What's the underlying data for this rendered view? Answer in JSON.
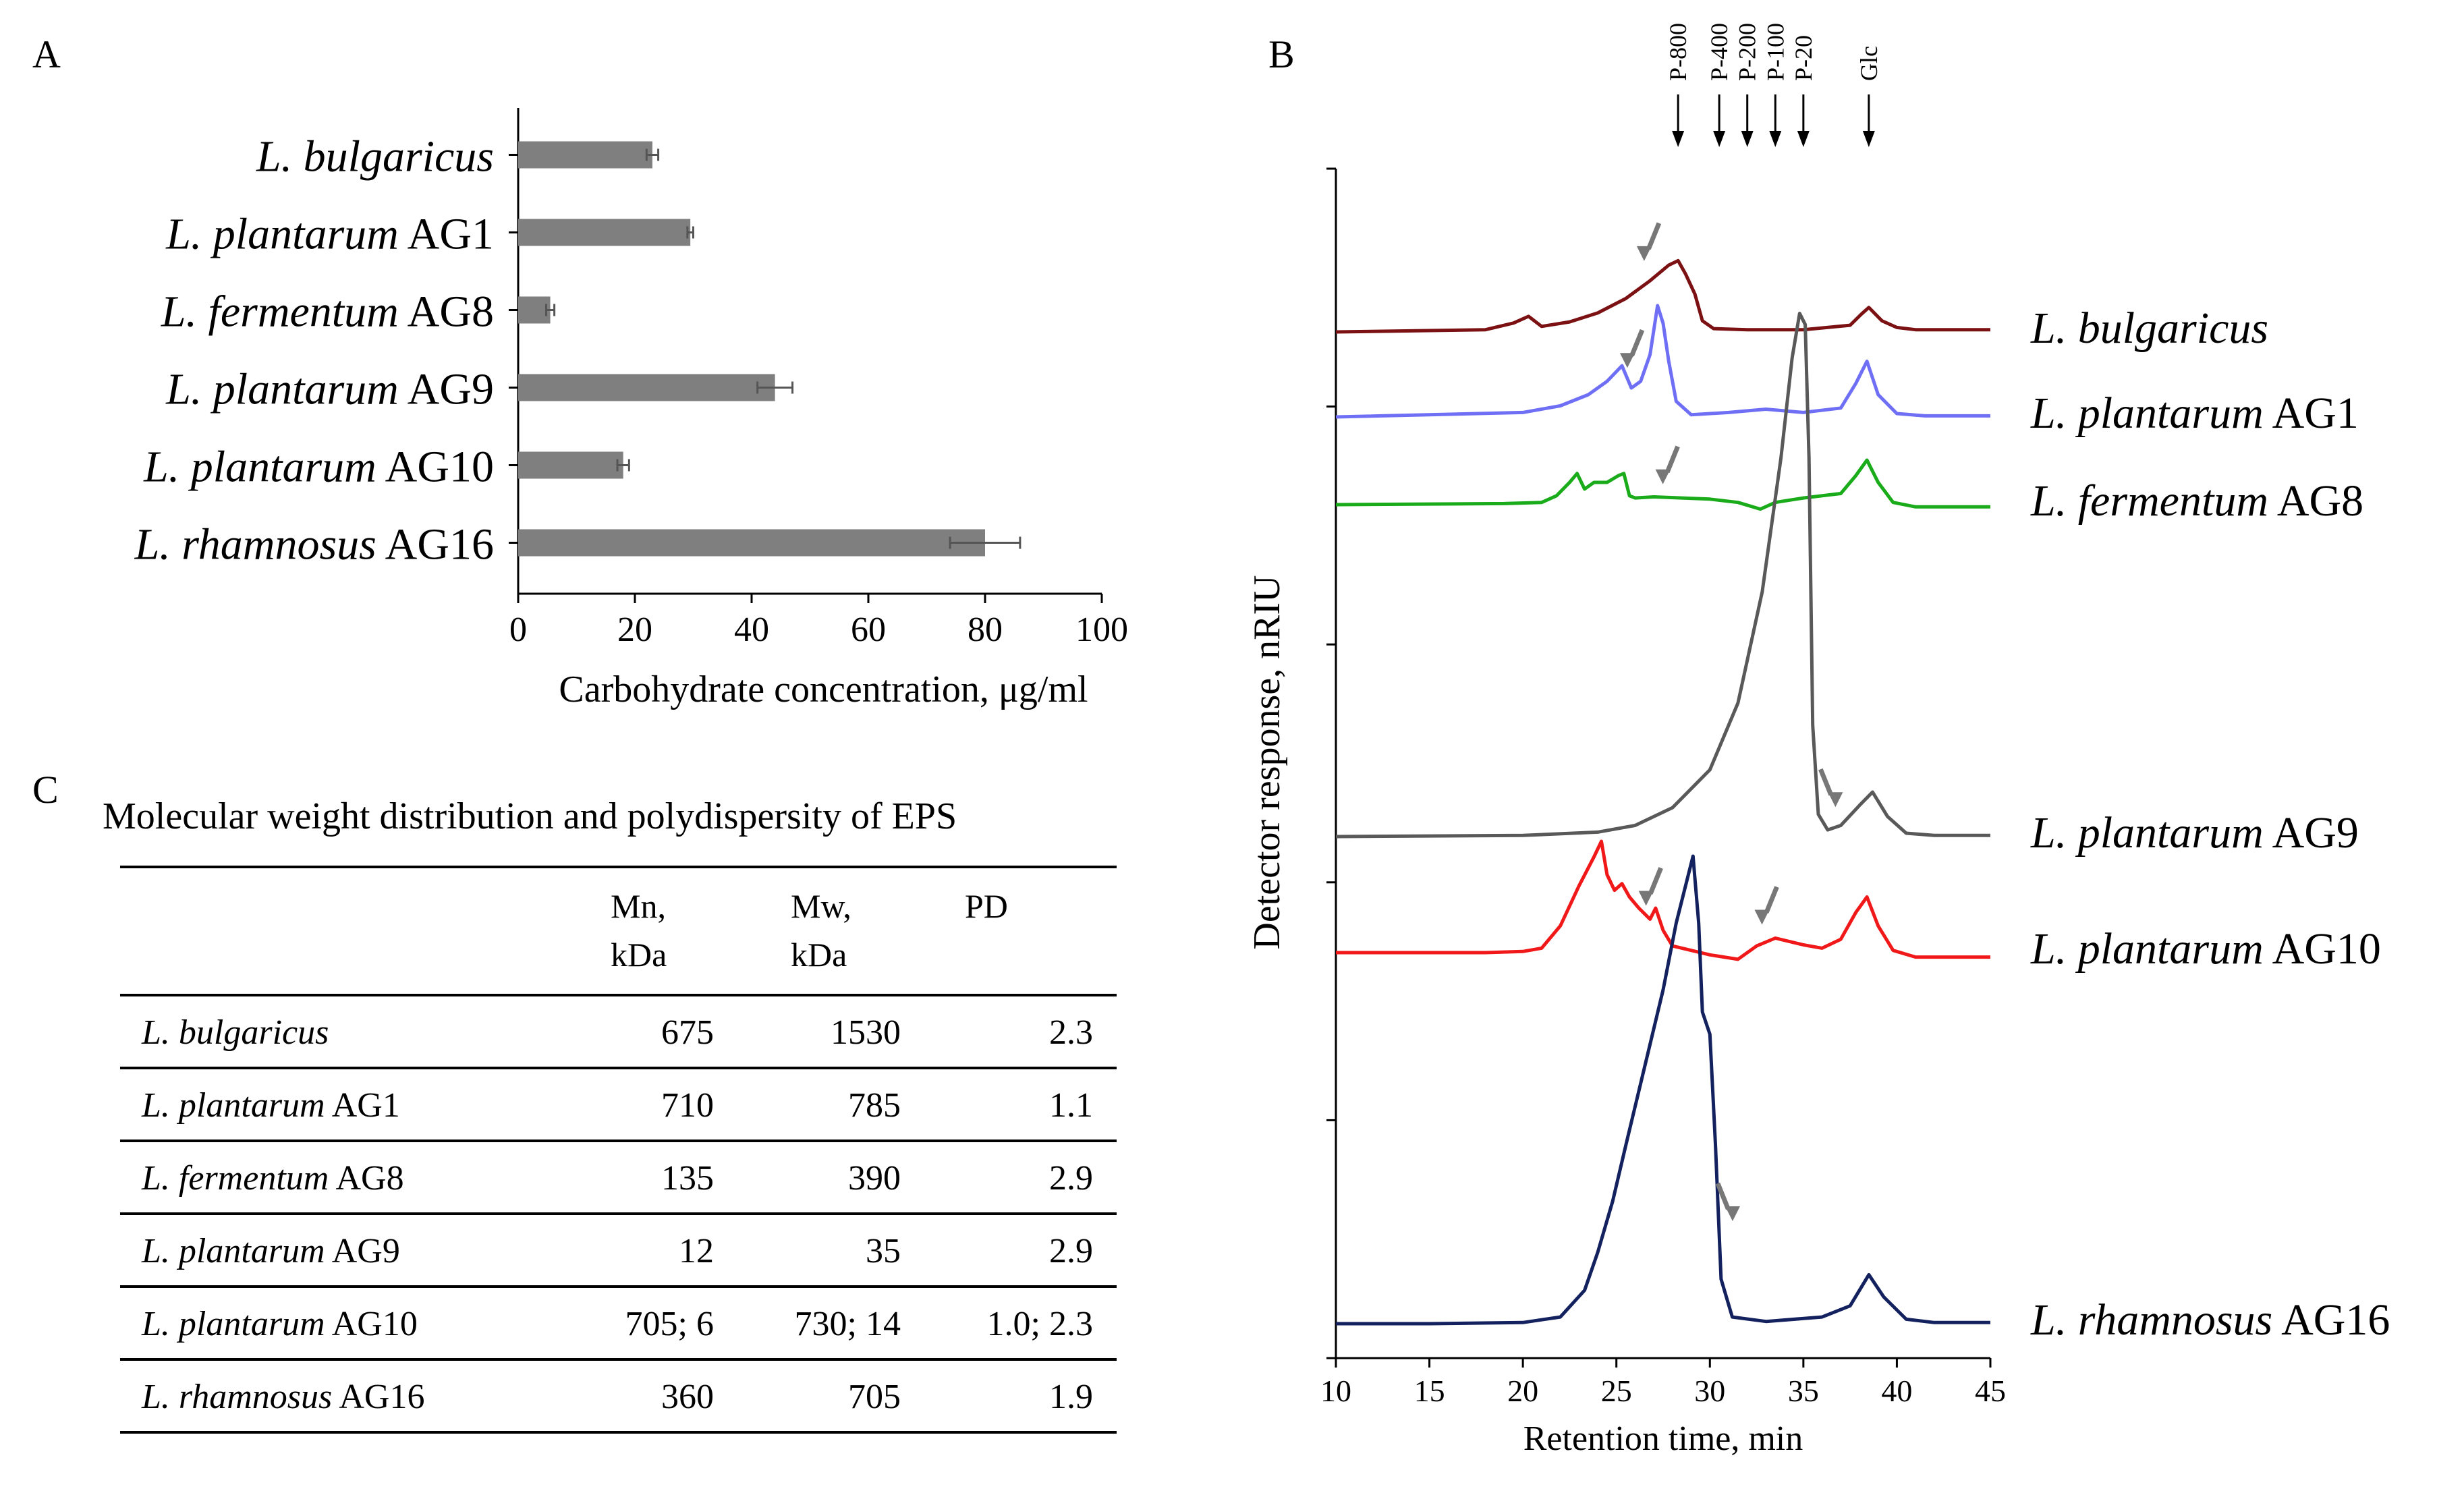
{
  "panels": {
    "a": "A",
    "b": "B",
    "c": "C"
  },
  "chart_data": [
    {
      "type": "bar",
      "orientation": "horizontal",
      "categories": [
        {
          "species": "L. bulgaricus",
          "strain": ""
        },
        {
          "species": "L. plantarum",
          "strain": "AG1"
        },
        {
          "species": "L. fermentum",
          "strain": "AG8"
        },
        {
          "species": "L. plantarum",
          "strain": "AG9"
        },
        {
          "species": "L. plantarum",
          "strain": "AG10"
        },
        {
          "species": "L. rhamnosus",
          "strain": "AG16"
        }
      ],
      "values": [
        23,
        29.5,
        5.5,
        44,
        18,
        80
      ],
      "errors": [
        1,
        0.5,
        0.7,
        3,
        1,
        6
      ],
      "xlabel": "Carbohydrate concentration, μg/ml",
      "xlim": [
        0,
        100
      ],
      "xticks": [
        0,
        20,
        40,
        60,
        80,
        100
      ],
      "bar_color": "#7f7f7f"
    },
    {
      "type": "line",
      "ylabel": "Detector response, nRIU",
      "xlabel": "Retention time, min",
      "xlim": [
        10,
        45
      ],
      "xticks": [
        10,
        15,
        20,
        25,
        30,
        35,
        40,
        45
      ],
      "standards": [
        {
          "label": "P-800",
          "x": 28.3
        },
        {
          "label": "P-400",
          "x": 30.5
        },
        {
          "label": "P-200",
          "x": 32
        },
        {
          "label": "P-100",
          "x": 33.5
        },
        {
          "label": "P-20",
          "x": 35
        },
        {
          "label": "Glc",
          "x": 38.5
        }
      ],
      "series": [
        {
          "species": "L. bulgaricus",
          "strain": "",
          "color": "#7b1113",
          "baseline": 0,
          "scale": 0.3,
          "points": [
            [
              10,
              0
            ],
            [
              18,
              0.1
            ],
            [
              19.5,
              0.4
            ],
            [
              20.3,
              0.7
            ],
            [
              21,
              0.25
            ],
            [
              22.5,
              0.45
            ],
            [
              24,
              0.85
            ],
            [
              25.5,
              1.5
            ],
            [
              26.8,
              2.3
            ],
            [
              27.8,
              3.0
            ],
            [
              28.3,
              3.2
            ],
            [
              28.7,
              2.6
            ],
            [
              29.2,
              1.7
            ],
            [
              29.6,
              0.5
            ],
            [
              30.2,
              0.15
            ],
            [
              32,
              0.1
            ],
            [
              35,
              0.1
            ],
            [
              37.5,
              0.3
            ],
            [
              38.1,
              0.8
            ],
            [
              38.5,
              1.1
            ],
            [
              39.2,
              0.5
            ],
            [
              40,
              0.2
            ],
            [
              41,
              0.1
            ],
            [
              45,
              0.1
            ]
          ],
          "arrows": [
            27.2
          ]
        },
        {
          "species": "L. plantarum",
          "strain": "AG1",
          "color": "#6f6ff5",
          "baseline": 1,
          "scale": 0.3,
          "points": [
            [
              10,
              0
            ],
            [
              20,
              0.2
            ],
            [
              22,
              0.5
            ],
            [
              23.5,
              1.0
            ],
            [
              24.5,
              1.6
            ],
            [
              25.3,
              2.3
            ],
            [
              25.8,
              1.3
            ],
            [
              26.3,
              1.6
            ],
            [
              26.8,
              2.8
            ],
            [
              27.2,
              5.0
            ],
            [
              27.5,
              4.2
            ],
            [
              27.8,
              2.5
            ],
            [
              28.2,
              0.7
            ],
            [
              29,
              0.1
            ],
            [
              31,
              0.2
            ],
            [
              33,
              0.35
            ],
            [
              35,
              0.2
            ],
            [
              37,
              0.4
            ],
            [
              37.8,
              1.5
            ],
            [
              38.4,
              2.5
            ],
            [
              39,
              1.0
            ],
            [
              40,
              0.15
            ],
            [
              41.5,
              0.05
            ],
            [
              45,
              0.05
            ]
          ],
          "arrows": [
            26.3
          ]
        },
        {
          "species": "L. fermentum",
          "strain": "AG8",
          "color": "#19ab19",
          "baseline": 2,
          "scale": 0.3,
          "points": [
            [
              10,
              0
            ],
            [
              19,
              0.05
            ],
            [
              21,
              0.1
            ],
            [
              21.8,
              0.4
            ],
            [
              22.5,
              1.0
            ],
            [
              22.9,
              1.4
            ],
            [
              23.3,
              0.7
            ],
            [
              23.8,
              1.0
            ],
            [
              24.5,
              1.0
            ],
            [
              25.1,
              1.3
            ],
            [
              25.4,
              1.4
            ],
            [
              25.7,
              0.4
            ],
            [
              26,
              0.3
            ],
            [
              27,
              0.35
            ],
            [
              28.5,
              0.3
            ],
            [
              30,
              0.25
            ],
            [
              31.5,
              0.1
            ],
            [
              32.7,
              -0.2
            ],
            [
              33.5,
              0.1
            ],
            [
              35,
              0.3
            ],
            [
              37,
              0.5
            ],
            [
              37.8,
              1.3
            ],
            [
              38.4,
              2.0
            ],
            [
              39,
              1.0
            ],
            [
              39.8,
              0.1
            ],
            [
              41,
              -0.1
            ],
            [
              45,
              -0.1
            ]
          ],
          "arrows": [
            28.2
          ]
        },
        {
          "species": "L. plantarum",
          "strain": "AG9",
          "color": "#595959",
          "baseline": 3,
          "scale": 0.3,
          "points": [
            [
              10,
              0
            ],
            [
              20,
              0.05
            ],
            [
              24,
              0.2
            ],
            [
              26,
              0.5
            ],
            [
              28,
              1.3
            ],
            [
              30,
              3.0
            ],
            [
              31.5,
              6.0
            ],
            [
              32.8,
              11.0
            ],
            [
              33.8,
              17.0
            ],
            [
              34.4,
              21.5
            ],
            [
              34.8,
              23.5
            ],
            [
              35.1,
              23.0
            ],
            [
              35.3,
              17.0
            ],
            [
              35.5,
              5.0
            ],
            [
              35.8,
              1.0
            ],
            [
              36.3,
              0.3
            ],
            [
              37,
              0.5
            ],
            [
              38,
              1.4
            ],
            [
              38.7,
              2.0
            ],
            [
              39.5,
              0.9
            ],
            [
              40.5,
              0.15
            ],
            [
              42,
              0.05
            ],
            [
              45,
              0.05
            ]
          ],
          "arrows": [
            36.0
          ]
        },
        {
          "species": "L. plantarum",
          "strain": "AG10",
          "color": "#f01818",
          "baseline": 4,
          "scale": 0.3,
          "points": [
            [
              10,
              0
            ],
            [
              18,
              0
            ],
            [
              20,
              0.05
            ],
            [
              21,
              0.2
            ],
            [
              22,
              1.2
            ],
            [
              23,
              3.0
            ],
            [
              23.8,
              4.3
            ],
            [
              24.2,
              5.0
            ],
            [
              24.5,
              3.5
            ],
            [
              24.9,
              2.8
            ],
            [
              25.3,
              3.1
            ],
            [
              25.7,
              2.5
            ],
            [
              26.2,
              2.0
            ],
            [
              26.8,
              1.5
            ],
            [
              27.1,
              2.0
            ],
            [
              27.5,
              1.0
            ],
            [
              28,
              0.3
            ],
            [
              29,
              0.1
            ],
            [
              30,
              -0.1
            ],
            [
              31.5,
              -0.3
            ],
            [
              32.5,
              0.3
            ],
            [
              33.5,
              0.65
            ],
            [
              35,
              0.35
            ],
            [
              36,
              0.2
            ],
            [
              37,
              0.6
            ],
            [
              37.8,
              1.8
            ],
            [
              38.4,
              2.5
            ],
            [
              39,
              1.2
            ],
            [
              39.8,
              0.1
            ],
            [
              41,
              -0.2
            ],
            [
              45,
              -0.2
            ]
          ],
          "arrows": [
            27.3,
            33.5
          ]
        },
        {
          "species": "L. rhamnosus",
          "strain": "AG16",
          "color": "#13225f",
          "baseline": 5,
          "scale": 0.3,
          "points": [
            [
              10,
              0
            ],
            [
              15,
              0
            ],
            [
              20,
              0.05
            ],
            [
              22,
              0.3
            ],
            [
              23.3,
              1.5
            ],
            [
              24,
              3.2
            ],
            [
              24.8,
              5.5
            ],
            [
              25.5,
              8.0
            ],
            [
              26.5,
              11.5
            ],
            [
              27.5,
              15.0
            ],
            [
              28.2,
              18.0
            ],
            [
              28.8,
              20.0
            ],
            [
              29.1,
              21.0
            ],
            [
              29.4,
              18.0
            ],
            [
              29.6,
              14.0
            ],
            [
              30.0,
              13.0
            ],
            [
              30.3,
              8.0
            ],
            [
              30.6,
              2.0
            ],
            [
              31.2,
              0.3
            ],
            [
              33,
              0.1
            ],
            [
              36,
              0.3
            ],
            [
              37.5,
              0.8
            ],
            [
              38.5,
              2.2
            ],
            [
              39.3,
              1.2
            ],
            [
              40.5,
              0.2
            ],
            [
              42,
              0.05
            ],
            [
              45,
              0.05
            ]
          ],
          "arrows": [
            30.5
          ]
        }
      ]
    }
  ],
  "table": {
    "title": "Molecular weight distribution and polydispersity of EPS",
    "headers": [
      {
        "line1": "",
        "line2": ""
      },
      {
        "line1": "Mn,",
        "line2": "kDa"
      },
      {
        "line1": "Mw,",
        "line2": "kDa"
      },
      {
        "line1": "PD",
        "line2": ""
      }
    ],
    "rows": [
      {
        "species": "L. bulgaricus",
        "strain": "",
        "mn": "675",
        "mw": "1530",
        "pd": "2.3"
      },
      {
        "species": "L. plantarum",
        "strain": "AG1",
        "mn": "710",
        "mw": "785",
        "pd": "1.1"
      },
      {
        "species": "L. fermentum",
        "strain": "AG8",
        "mn": "135",
        "mw": "390",
        "pd": "2.9"
      },
      {
        "species": "L. plantarum",
        "strain": "AG9",
        "mn": "12",
        "mw": "35",
        "pd": "2.9"
      },
      {
        "species": "L. plantarum",
        "strain": "AG10",
        "mn": "705; 6",
        "mw": "730; 14",
        "pd": "1.0; 2.3"
      },
      {
        "species": "L. rhamnosus",
        "strain": "AG16",
        "mn": "360",
        "mw": "705",
        "pd": "1.9"
      }
    ]
  }
}
